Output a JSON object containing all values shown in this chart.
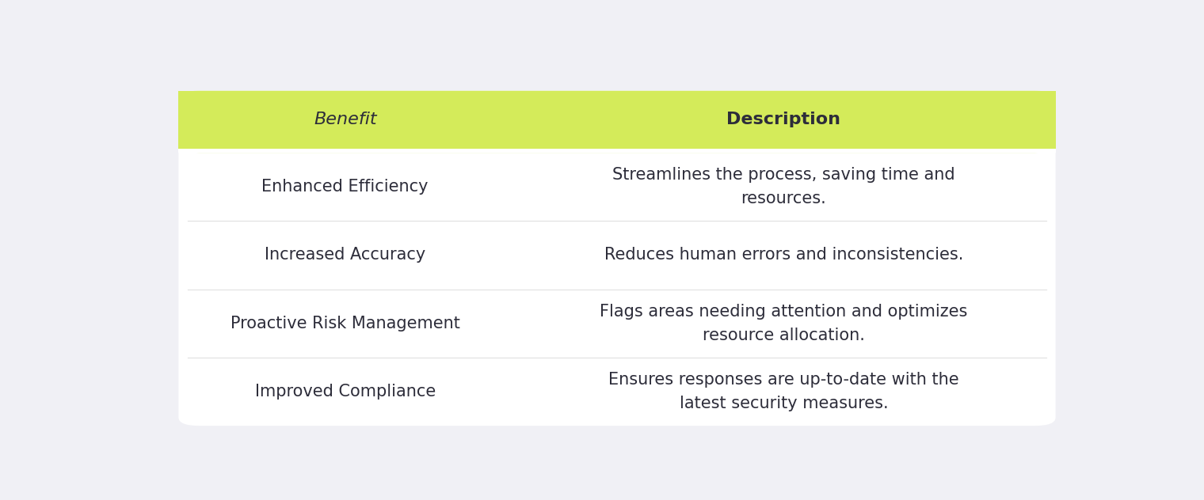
{
  "header_bg_color": "#d4eb5a",
  "header_text_color": "#2d2d3a",
  "body_bg_color": "#f0f0f5",
  "table_bg_color": "#ffffff",
  "text_color": "#2d2d3a",
  "col1_header": "Benefit",
  "col2_header": "Description",
  "rows": [
    {
      "benefit": "Enhanced Efficiency",
      "description": "Streamlines the process, saving time and\nresources."
    },
    {
      "benefit": "Increased Accuracy",
      "description": "Reduces human errors and inconsistencies."
    },
    {
      "benefit": "Proactive Risk Management",
      "description": "Flags areas needing attention and optimizes\nresource allocation."
    },
    {
      "benefit": "Improved Compliance",
      "description": "Ensures responses are up-to-date with the\nlatest security measures."
    }
  ],
  "figsize": [
    15.2,
    6.32
  ],
  "dpi": 100
}
